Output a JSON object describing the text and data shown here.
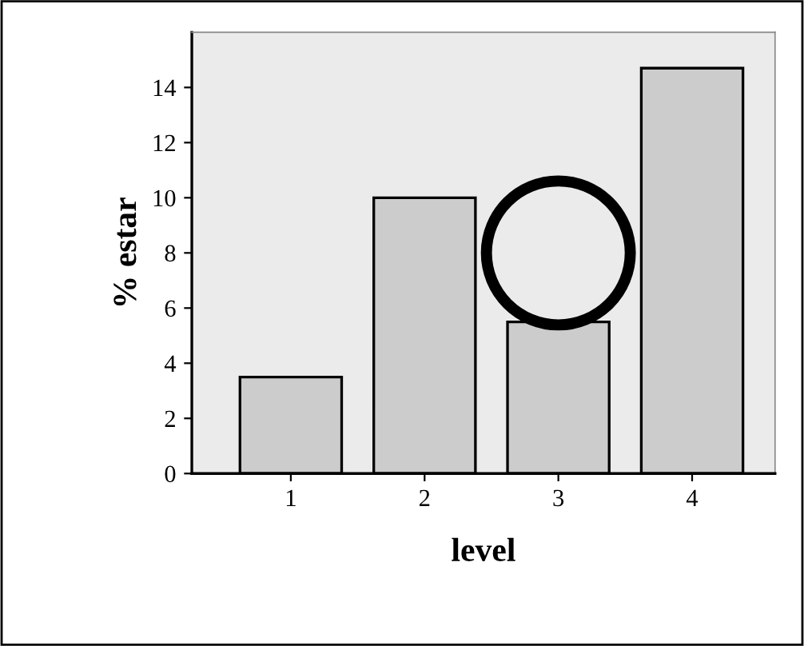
{
  "chart_data": {
    "type": "bar",
    "xlabel": "level",
    "ylabel": "% estar",
    "categories": [
      "1",
      "2",
      "3",
      "4"
    ],
    "values": [
      3.5,
      10.0,
      5.5,
      14.7
    ],
    "color": "#cccccc",
    "ylim": [
      0,
      16
    ],
    "yticks": [
      0,
      2,
      4,
      6,
      8,
      10,
      12,
      14
    ],
    "grid": false,
    "legend": false
  }
}
